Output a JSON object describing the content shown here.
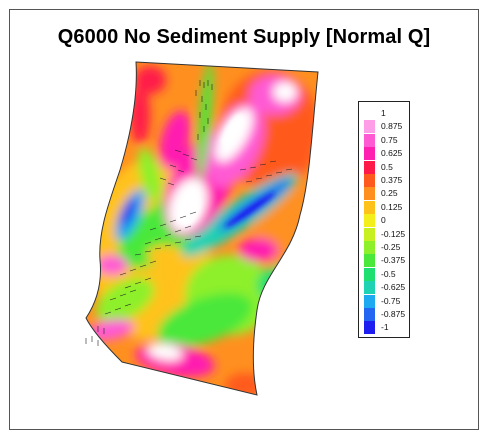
{
  "title": "Q6000 No Sediment Supply [Normal Q]",
  "legend": {
    "labels": [
      "1",
      "0.875",
      "0.75",
      "0.625",
      "0.5",
      "0.375",
      "0.25",
      "0.125",
      "0",
      "-0.125",
      "-0.25",
      "-0.375",
      "-0.5",
      "-0.625",
      "-0.75",
      "-0.875",
      "-1"
    ],
    "colors": [
      "#ffffff",
      "#ff9ee8",
      "#ff5ad4",
      "#ff1fb0",
      "#ff1a4a",
      "#ff5a1e",
      "#ff9020",
      "#ffc21a",
      "#f4ee1a",
      "#c8f020",
      "#8ef02a",
      "#4ae83a",
      "#1ee070",
      "#1ed2b4",
      "#1eaaf0",
      "#2266f2",
      "#1e1ef0"
    ]
  }
}
